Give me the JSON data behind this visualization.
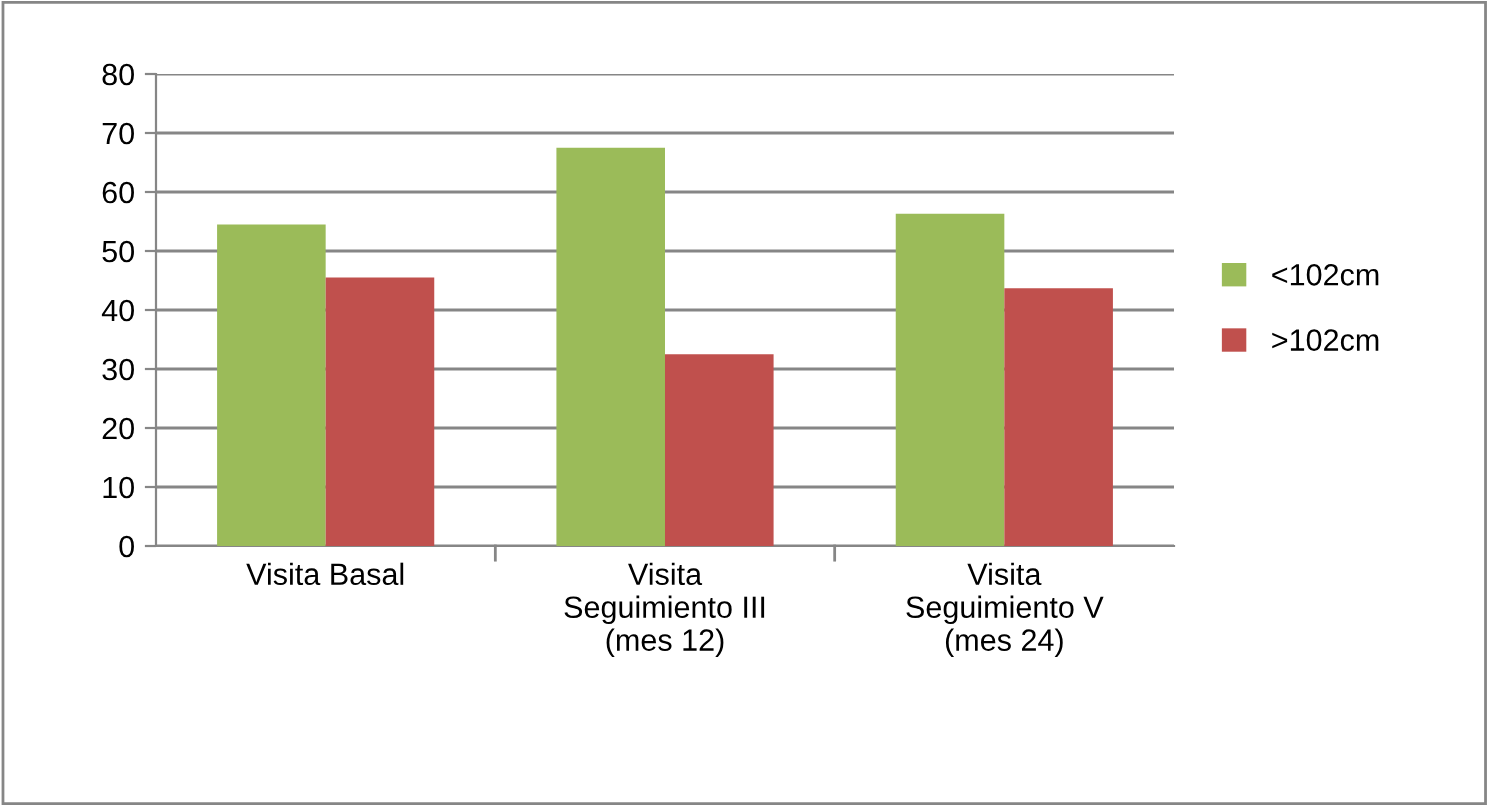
{
  "chart_data": {
    "type": "bar",
    "categories": [
      "Visita Basal",
      "Visita\nSeguimiento III\n(mes 12)",
      "Visita\nSeguimiento V\n(mes 24)"
    ],
    "series": [
      {
        "name": "<102cm",
        "color": "#9bbb59",
        "values": [
          54.5,
          67.5,
          56.3
        ]
      },
      {
        "name": ">102cm",
        "color": "#c0504d",
        "values": [
          45.5,
          32.5,
          43.7
        ]
      }
    ],
    "ylim": [
      0,
      80
    ],
    "yticks": [
      0,
      10,
      20,
      30,
      40,
      50,
      60,
      70,
      80
    ],
    "grid": "y",
    "legend": "right"
  }
}
